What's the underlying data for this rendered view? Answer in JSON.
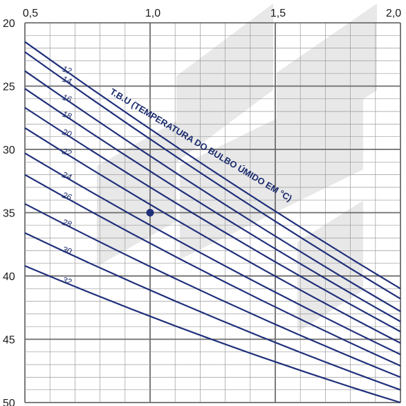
{
  "chart_data": {
    "type": "line",
    "title": "T.B.U (TEMPERATURA DO BULBO ÚMIDO EM  °C)",
    "x_ticks": [
      "0,5",
      "1,0",
      "1,5",
      "2,0"
    ],
    "y_ticks": [
      "20",
      "25",
      "30",
      "35",
      "40",
      "45",
      "50"
    ],
    "xlim": [
      0.5,
      2.0
    ],
    "ylim": [
      20,
      50
    ],
    "y_inverted": true,
    "grid": true,
    "colors": {
      "curves": "#1f2f7a",
      "grid_major": "#6b6b6b",
      "grid_minor": "#9a9a9a",
      "marker": "#1f2f7a",
      "watermark": "#e6e6e6"
    },
    "series": [
      {
        "name": "12",
        "start": [
          0.5,
          21.5
        ],
        "end": [
          2.0,
          41.0
        ]
      },
      {
        "name": "14",
        "start": [
          0.5,
          22.3
        ],
        "end": [
          2.0,
          41.8
        ]
      },
      {
        "name": "16",
        "start": [
          0.5,
          23.8
        ],
        "end": [
          2.0,
          42.8
        ]
      },
      {
        "name": "18",
        "start": [
          0.5,
          25.2
        ],
        "end": [
          2.0,
          43.6
        ]
      },
      {
        "name": "20",
        "start": [
          0.5,
          26.7
        ],
        "end": [
          2.0,
          44.4
        ]
      },
      {
        "name": "22",
        "start": [
          0.5,
          28.3
        ],
        "end": [
          2.0,
          45.3
        ]
      },
      {
        "name": "24",
        "start": [
          0.5,
          30.3
        ],
        "end": [
          2.0,
          46.2
        ]
      },
      {
        "name": "26",
        "start": [
          0.5,
          32.0
        ],
        "end": [
          2.0,
          47.1
        ]
      },
      {
        "name": "28",
        "start": [
          0.5,
          34.3
        ],
        "end": [
          2.0,
          48.0
        ]
      },
      {
        "name": "30",
        "start": [
          0.5,
          36.6
        ],
        "end": [
          2.0,
          49.0
        ]
      },
      {
        "name": "32",
        "start": [
          0.5,
          39.2
        ],
        "end": [
          2.0,
          50.0
        ]
      }
    ],
    "marker_point": {
      "x": 1.0,
      "y": 35.0
    }
  }
}
